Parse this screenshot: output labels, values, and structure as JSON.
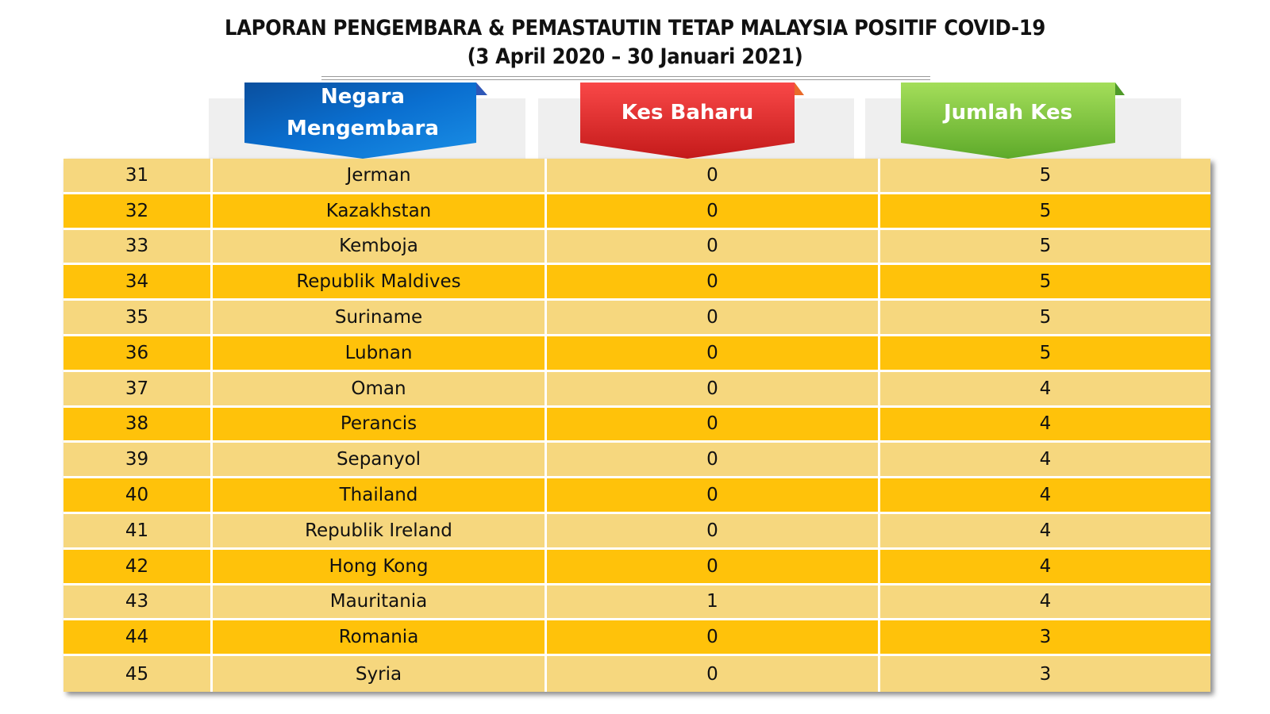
{
  "title": {
    "line1": "LAPORAN PENGEMBARA & PEMASTAUTIN TETAP MALAYSIA POSITIF COVID-19",
    "line2": "(3 April 2020 –  30 Januari 2021)"
  },
  "headers": {
    "negara_line1": "Negara",
    "negara_line2": "Mengembara",
    "kes_baharu": "Kes Baharu",
    "jumlah_kes": "Jumlah Kes"
  },
  "colors": {
    "row_light": "#f6d77e",
    "row_dark": "#ffc20a",
    "header_blue": "#0a6fd0",
    "header_red": "#ee3434",
    "header_green": "#7fcc3c"
  },
  "rows": [
    {
      "no": "31",
      "negara": "Jerman",
      "kes_baharu": "0",
      "jumlah_kes": "5"
    },
    {
      "no": "32",
      "negara": "Kazakhstan",
      "kes_baharu": "0",
      "jumlah_kes": "5"
    },
    {
      "no": "33",
      "negara": "Kemboja",
      "kes_baharu": "0",
      "jumlah_kes": "5"
    },
    {
      "no": "34",
      "negara": "Republik Maldives",
      "kes_baharu": "0",
      "jumlah_kes": "5"
    },
    {
      "no": "35",
      "negara": "Suriname",
      "kes_baharu": "0",
      "jumlah_kes": "5"
    },
    {
      "no": "36",
      "negara": "Lubnan",
      "kes_baharu": "0",
      "jumlah_kes": "5"
    },
    {
      "no": "37",
      "negara": "Oman",
      "kes_baharu": "0",
      "jumlah_kes": "4"
    },
    {
      "no": "38",
      "negara": "Perancis",
      "kes_baharu": "0",
      "jumlah_kes": "4"
    },
    {
      "no": "39",
      "negara": "Sepanyol",
      "kes_baharu": "0",
      "jumlah_kes": "4"
    },
    {
      "no": "40",
      "negara": "Thailand",
      "kes_baharu": "0",
      "jumlah_kes": "4"
    },
    {
      "no": "41",
      "negara": "Republik Ireland",
      "kes_baharu": "0",
      "jumlah_kes": "4"
    },
    {
      "no": "42",
      "negara": "Hong Kong",
      "kes_baharu": "0",
      "jumlah_kes": "4"
    },
    {
      "no": "43",
      "negara": "Mauritania",
      "kes_baharu": "1",
      "jumlah_kes": "4"
    },
    {
      "no": "44",
      "negara": "Romania",
      "kes_baharu": "0",
      "jumlah_kes": "3"
    },
    {
      "no": "45",
      "negara": "Syria",
      "kes_baharu": "0",
      "jumlah_kes": "3"
    }
  ]
}
